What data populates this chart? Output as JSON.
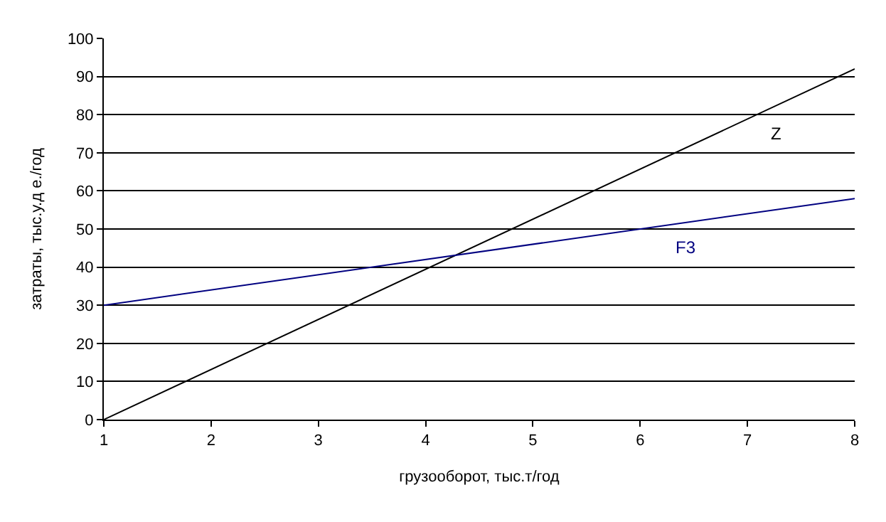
{
  "chart_data": {
    "type": "line",
    "xlabel": "грузооборот, тыс.т/год",
    "ylabel": "затраты, тыс.у.д е./год",
    "x": [
      1,
      8
    ],
    "series": [
      {
        "name": "Z",
        "color": "#000000",
        "values": [
          0,
          92
        ]
      },
      {
        "name": "F3",
        "color": "#000080",
        "values": [
          30,
          58
        ]
      }
    ],
    "xlim": [
      1,
      8
    ],
    "xticks": [
      1,
      2,
      3,
      4,
      5,
      6,
      7,
      8
    ],
    "ylim": [
      0,
      100
    ],
    "yticks": [
      0,
      10,
      20,
      30,
      40,
      50,
      60,
      70,
      80,
      90,
      100
    ],
    "grid": "y",
    "legend": false,
    "marker": "none",
    "line_style": "solid"
  }
}
